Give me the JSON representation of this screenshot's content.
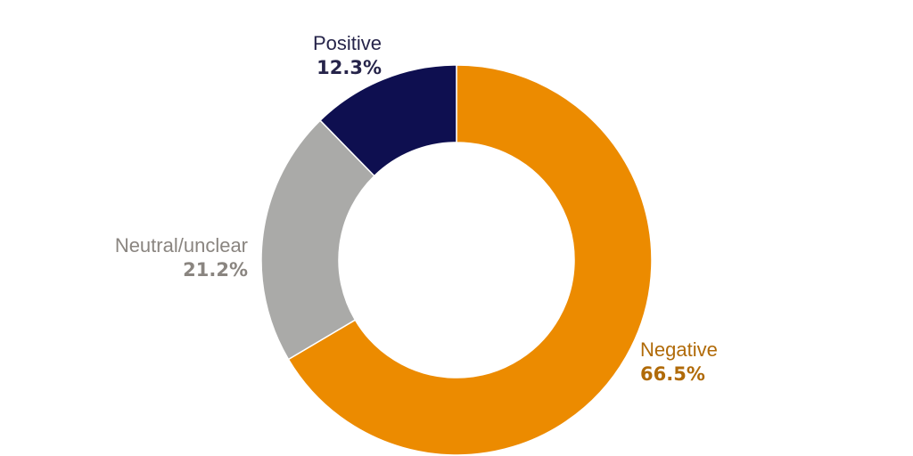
{
  "chart_data": {
    "type": "pie",
    "variant": "donut",
    "start": "12 o'clock, clockwise",
    "slices": [
      {
        "label": "Negative",
        "value": 66.5,
        "value_label": "66.5%",
        "color": "#EC8B00",
        "label_color": "#B06A08"
      },
      {
        "label": "Neutral/unclear",
        "value": 21.2,
        "value_label": "21.2%",
        "color": "#AAAAA8",
        "label_color": "#8A8580"
      },
      {
        "label": "Positive",
        "value": 12.3,
        "value_label": "12.3%",
        "color": "#0E0F50",
        "label_color": "#26244A"
      }
    ]
  }
}
